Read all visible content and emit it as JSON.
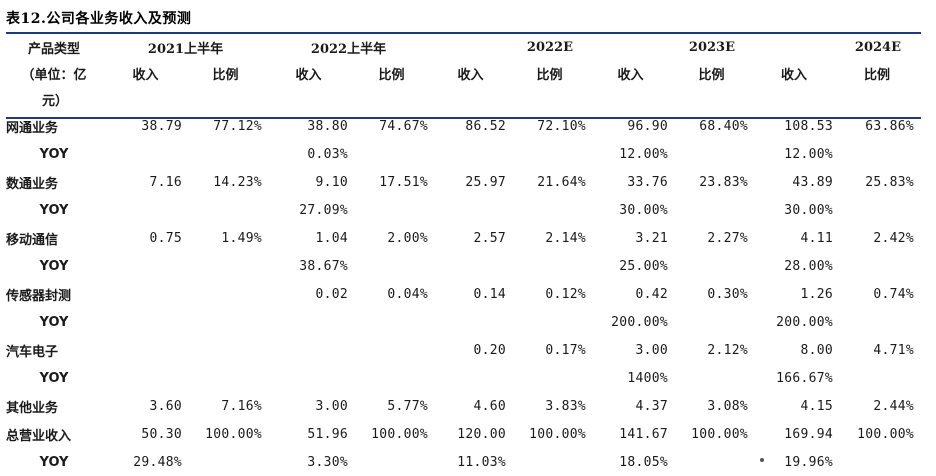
{
  "title": "表12.公司各业务收入及预测",
  "header": {
    "category_label": "产品类型",
    "unit_label": "（单位：亿",
    "unit_label_2": "元）",
    "periods": [
      "2021上半年",
      "2022上半年",
      "2022E",
      "2023E",
      "2024E"
    ],
    "sub_labels": [
      "收入",
      "比例"
    ]
  },
  "rows": [
    {
      "label": "网通业务",
      "cells": [
        "38.79",
        "77.12%",
        "38.80",
        "74.67%",
        "86.52",
        "72.10%",
        "96.90",
        "68.40%",
        "108.53",
        "63.86%"
      ]
    },
    {
      "label": "YOY",
      "yoy": true,
      "cells": [
        "",
        "",
        "0.03%",
        "",
        "",
        "",
        "12.00%",
        "",
        "12.00%",
        ""
      ]
    },
    {
      "label": "数通业务",
      "cells": [
        "7.16",
        "14.23%",
        "9.10",
        "17.51%",
        "25.97",
        "21.64%",
        "33.76",
        "23.83%",
        "43.89",
        "25.83%"
      ]
    },
    {
      "label": "YOY",
      "yoy": true,
      "cells": [
        "",
        "",
        "27.09%",
        "",
        "",
        "",
        "30.00%",
        "",
        "30.00%",
        ""
      ]
    },
    {
      "label": "移动通信",
      "cells": [
        "0.75",
        "1.49%",
        "1.04",
        "2.00%",
        "2.57",
        "2.14%",
        "3.21",
        "2.27%",
        "4.11",
        "2.42%"
      ]
    },
    {
      "label": "YOY",
      "yoy": true,
      "cells": [
        "",
        "",
        "38.67%",
        "",
        "",
        "",
        "25.00%",
        "",
        "28.00%",
        ""
      ]
    },
    {
      "label": "传感器封测",
      "cells": [
        "",
        "",
        "0.02",
        "0.04%",
        "0.14",
        "0.12%",
        "0.42",
        "0.30%",
        "1.26",
        "0.74%"
      ]
    },
    {
      "label": "YOY",
      "yoy": true,
      "cells": [
        "",
        "",
        "",
        "",
        "",
        "",
        "200.00%",
        "",
        "200.00%",
        ""
      ]
    },
    {
      "label": "汽车电子",
      "cells": [
        "",
        "",
        "",
        "",
        "0.20",
        "0.17%",
        "3.00",
        "2.12%",
        "8.00",
        "4.71%"
      ]
    },
    {
      "label": "YOY",
      "yoy": true,
      "cells": [
        "",
        "",
        "",
        "",
        "",
        "",
        "1400%",
        "",
        "166.67%",
        ""
      ]
    },
    {
      "label": "其他业务",
      "cells": [
        "3.60",
        "7.16%",
        "3.00",
        "5.77%",
        "4.60",
        "3.83%",
        "4.37",
        "3.08%",
        "4.15",
        "2.44%"
      ]
    },
    {
      "label": "总营业收入",
      "cells": [
        "50.30",
        "100.00%",
        "51.96",
        "100.00%",
        "120.00",
        "100.00%",
        "141.67",
        "100.00%",
        "169.94",
        "100.00%"
      ]
    },
    {
      "label": "YOY",
      "yoy": true,
      "cells": [
        "29.48%",
        "",
        "3.30%",
        "",
        "11.03%",
        "",
        "18.05%",
        "",
        "19.96%",
        ""
      ]
    }
  ]
}
